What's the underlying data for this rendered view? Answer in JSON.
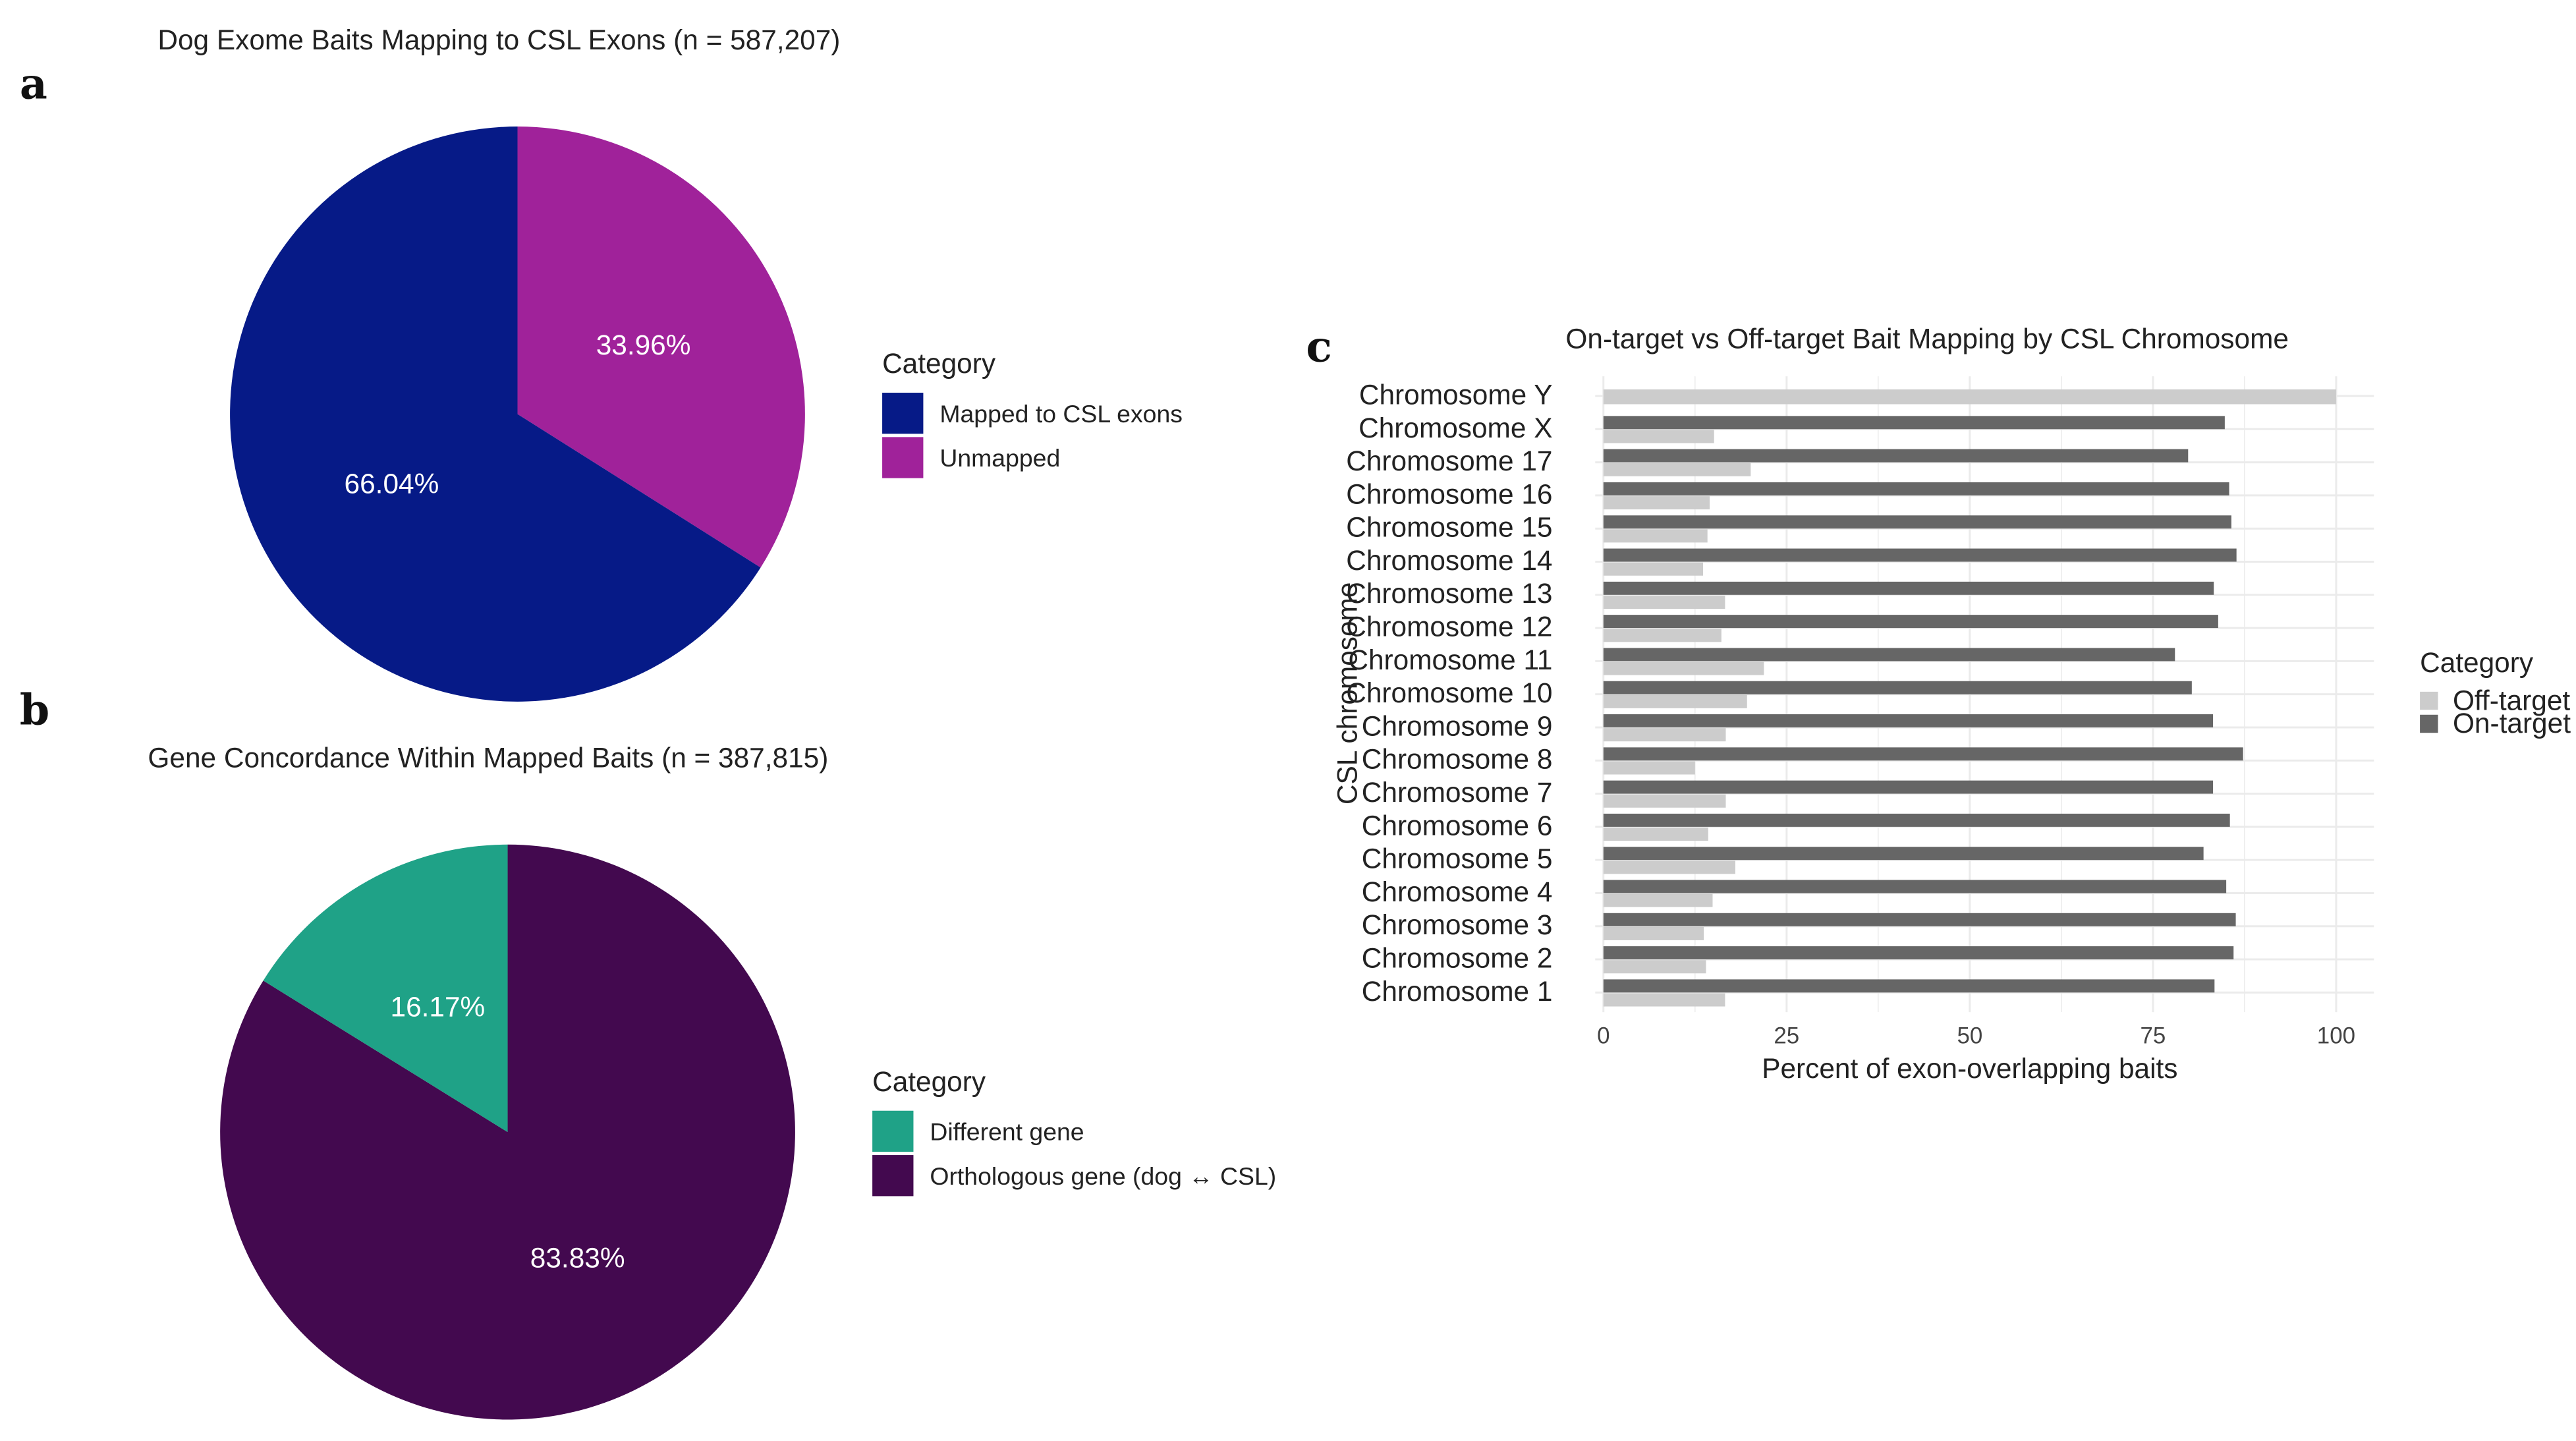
{
  "chart_data": [
    {
      "panel": "a",
      "type": "pie",
      "title": "Dog Exome Baits Mapping to CSL Exons (n = 587,207)",
      "legend_title": "Category",
      "legend_position": "right",
      "slices": [
        {
          "label": "Unmapped",
          "value": 33.96,
          "text": "33.96%",
          "color": "#A0229A"
        },
        {
          "label": "Mapped to CSL exons",
          "value": 66.04,
          "text": "66.04%",
          "color": "#061A87"
        }
      ],
      "legend_order": [
        "Mapped to CSL exons",
        "Unmapped"
      ]
    },
    {
      "panel": "b",
      "type": "pie",
      "title": "Gene Concordance Within Mapped Baits (n = 387,815)",
      "legend_title": "Category",
      "legend_position": "right",
      "slices": [
        {
          "label": "Orthologous gene (dog ↔ CSL)",
          "value": 83.83,
          "text": "83.83%",
          "color": "#43094F"
        },
        {
          "label": "Different gene",
          "value": 16.17,
          "text": "16.17%",
          "color": "#1FA287"
        }
      ],
      "legend_order": [
        "Different gene",
        "Orthologous gene (dog ↔ CSL)"
      ]
    },
    {
      "panel": "c",
      "type": "bar",
      "orientation": "horizontal",
      "title": "On-target vs Off-target Bait Mapping by CSL Chromosome",
      "xlabel": "Percent of exon-overlapping baits",
      "ylabel": "CSL chromosome",
      "xlim": [
        0,
        100
      ],
      "xticks": [
        0,
        25,
        50,
        75,
        100
      ],
      "grid": true,
      "legend_title": "Category",
      "legend_position": "right",
      "categories": [
        "Chromosome Y",
        "Chromosome X",
        "Chromosome 17",
        "Chromosome 16",
        "Chromosome 15",
        "Chromosome 14",
        "Chromosome 13",
        "Chromosome 12",
        "Chromosome 11",
        "Chromosome 10",
        "Chromosome 9",
        "Chromosome 8",
        "Chromosome 7",
        "Chromosome 6",
        "Chromosome 5",
        "Chromosome 4",
        "Chromosome 3",
        "Chromosome 2",
        "Chromosome 1"
      ],
      "series": [
        {
          "name": "Off-target",
          "color": "#CCCCCC",
          "values": [
            100,
            15.1,
            20.1,
            14.5,
            14.2,
            13.6,
            16.6,
            16.1,
            21.9,
            19.6,
            16.7,
            12.5,
            16.7,
            14.3,
            18.0,
            14.9,
            13.7,
            14.0,
            16.6
          ]
        },
        {
          "name": "On-target",
          "color": "#666666",
          "values": [
            0,
            84.8,
            79.8,
            85.4,
            85.7,
            86.4,
            83.3,
            83.9,
            78.0,
            80.3,
            83.2,
            87.3,
            83.2,
            85.5,
            81.9,
            85.0,
            86.3,
            86.0,
            83.4
          ]
        }
      ]
    }
  ]
}
